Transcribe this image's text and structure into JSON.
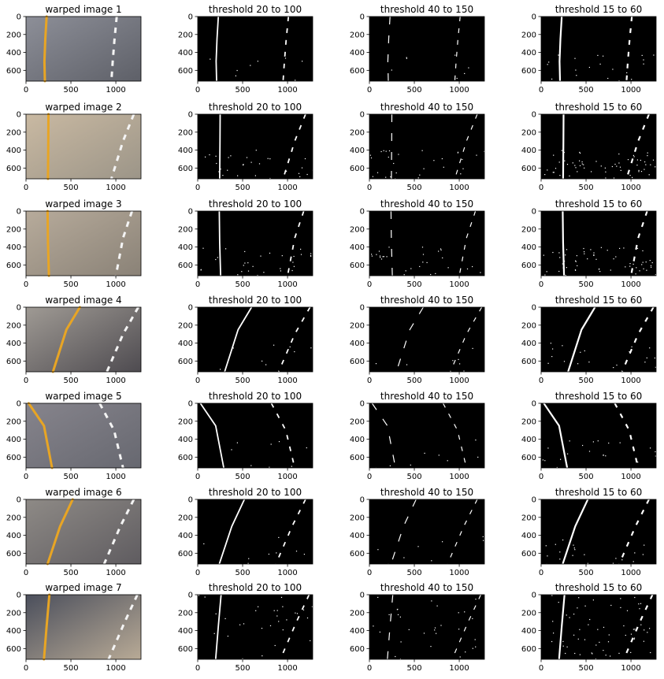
{
  "figure": {
    "rows": [
      {
        "panels": [
          {
            "title": "warped image 1",
            "kind": "photo",
            "variant": 1
          },
          {
            "title": "threshold 20 to 100",
            "kind": "binary",
            "variant": 1
          },
          {
            "title": "threshold 40 to 150",
            "kind": "binary",
            "variant": 1
          },
          {
            "title": "threshold 15 to 60",
            "kind": "binary",
            "variant": 1
          }
        ]
      },
      {
        "panels": [
          {
            "title": "warped image 2",
            "kind": "photo",
            "variant": 2
          },
          {
            "title": "threshold 20 to 100",
            "kind": "binary",
            "variant": 2
          },
          {
            "title": "threshold 40 to 150",
            "kind": "binary",
            "variant": 2
          },
          {
            "title": "threshold 15 to 60",
            "kind": "binary",
            "variant": 2
          }
        ]
      },
      {
        "panels": [
          {
            "title": "warped image 3",
            "kind": "photo",
            "variant": 3
          },
          {
            "title": "threshold 20 to 100",
            "kind": "binary",
            "variant": 3
          },
          {
            "title": "threshold 40 to 150",
            "kind": "binary",
            "variant": 3
          },
          {
            "title": "threshold 15 to 60",
            "kind": "binary",
            "variant": 3
          }
        ]
      },
      {
        "panels": [
          {
            "title": "warped image 4",
            "kind": "photo",
            "variant": 4
          },
          {
            "title": "threshold 20 to 100",
            "kind": "binary",
            "variant": 4
          },
          {
            "title": "threshold 40 to 150",
            "kind": "binary",
            "variant": 4
          },
          {
            "title": "threshold 15 to 60",
            "kind": "binary",
            "variant": 4
          }
        ]
      },
      {
        "panels": [
          {
            "title": "warped image 5",
            "kind": "photo",
            "variant": 5
          },
          {
            "title": "threshold 20 to 100",
            "kind": "binary",
            "variant": 5
          },
          {
            "title": "threshold 40 to 150",
            "kind": "binary",
            "variant": 5
          },
          {
            "title": "threshold 15 to 60",
            "kind": "binary",
            "variant": 5
          }
        ]
      },
      {
        "panels": [
          {
            "title": "warped image 6",
            "kind": "photo",
            "variant": 6
          },
          {
            "title": "threshold 20 to 100",
            "kind": "binary",
            "variant": 6
          },
          {
            "title": "threshold 40 to 150",
            "kind": "binary",
            "variant": 6
          },
          {
            "title": "threshold 15 to 60",
            "kind": "binary",
            "variant": 6
          }
        ]
      },
      {
        "panels": [
          {
            "title": "warped image 7",
            "kind": "photo",
            "variant": 7
          },
          {
            "title": "threshold 20 to 100",
            "kind": "binary",
            "variant": 7
          },
          {
            "title": "threshold 40 to 150",
            "kind": "binary",
            "variant": 7
          },
          {
            "title": "threshold 15 to 60",
            "kind": "binary",
            "variant": 7
          }
        ]
      }
    ],
    "x_ticks": [
      "0",
      "500",
      "1000"
    ],
    "y_ticks": [
      "0",
      "200",
      "400",
      "600"
    ],
    "x_tick_values": [
      0,
      500,
      1000
    ],
    "y_tick_values": [
      0,
      200,
      400,
      600
    ],
    "image_extent": {
      "width": 1280,
      "height": 720
    },
    "colors": {
      "background": "#ffffff",
      "binary_background": "#000000",
      "binary_lines": "#ffffff",
      "lane_yellow": "#e8a524",
      "lane_white": "#f4f4f4",
      "road_gray": "#7a7a80"
    }
  }
}
